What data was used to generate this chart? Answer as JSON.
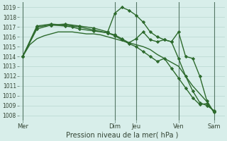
{
  "background_color": "#d8eeea",
  "grid_color": "#b8d8d0",
  "line_color": "#2d6a2d",
  "title": "Pression niveau de la mer( hPa )",
  "ylim": [
    1007.5,
    1019.5
  ],
  "yticks": [
    1008,
    1009,
    1010,
    1011,
    1012,
    1013,
    1014,
    1015,
    1016,
    1017,
    1018,
    1019
  ],
  "xtick_labels": [
    "Mer",
    "Dim",
    "Jeu",
    "Ven",
    "Sam"
  ],
  "xtick_positions": [
    0,
    13,
    16,
    22,
    27
  ],
  "vline_positions": [
    0,
    13,
    16,
    22,
    27
  ],
  "xlim": [
    -0.5,
    28.5
  ],
  "series": [
    {
      "x": [
        0,
        1,
        2,
        3,
        4,
        5,
        6,
        7,
        8,
        9,
        10,
        11,
        12,
        13,
        14,
        15,
        16,
        17,
        18,
        19,
        20,
        21,
        22,
        23,
        24,
        25,
        26,
        27
      ],
      "y": [
        1014.0,
        1015.2,
        1015.8,
        1016.1,
        1016.3,
        1016.5,
        1016.5,
        1016.5,
        1016.4,
        1016.3,
        1016.3,
        1016.2,
        1016.0,
        1015.8,
        1015.6,
        1015.4,
        1015.2,
        1015.0,
        1014.7,
        1014.2,
        1013.8,
        1013.4,
        1013.0,
        1012.0,
        1011.0,
        1010.2,
        1009.4,
        1008.3
      ],
      "marker": null,
      "linewidth": 1.0
    },
    {
      "x": [
        0,
        2,
        4,
        6,
        8,
        10,
        12,
        13,
        14,
        15,
        16,
        17,
        18,
        19,
        20,
        21,
        22,
        23,
        24,
        25,
        26,
        27
      ],
      "y": [
        1014.0,
        1016.8,
        1017.2,
        1017.3,
        1017.1,
        1016.9,
        1016.5,
        1018.4,
        1019.0,
        1018.7,
        1018.2,
        1017.5,
        1016.5,
        1016.0,
        1015.7,
        1015.5,
        1016.5,
        1014.0,
        1013.8,
        1012.0,
        1009.5,
        1008.3
      ],
      "marker": "D",
      "linewidth": 1.0,
      "markersize": 2.2
    },
    {
      "x": [
        0,
        2,
        4,
        6,
        7,
        8,
        10,
        12,
        13,
        14,
        15,
        16,
        17,
        18,
        19,
        20,
        21,
        22,
        23,
        24,
        25,
        26,
        27
      ],
      "y": [
        1014.0,
        1017.0,
        1017.2,
        1017.1,
        1017.0,
        1016.8,
        1016.6,
        1016.4,
        1016.2,
        1015.8,
        1015.4,
        1015.8,
        1016.5,
        1015.7,
        1015.5,
        1015.7,
        1015.5,
        1013.8,
        1012.0,
        1010.5,
        1009.3,
        1009.0,
        1008.5
      ],
      "marker": "D",
      "linewidth": 1.0,
      "markersize": 2.2
    },
    {
      "x": [
        0,
        2,
        4,
        6,
        8,
        10,
        12,
        13,
        14,
        15,
        16,
        17,
        18,
        19,
        20,
        21,
        22,
        23,
        24,
        25,
        26,
        27
      ],
      "y": [
        1014.0,
        1017.1,
        1017.3,
        1017.2,
        1017.0,
        1016.7,
        1016.4,
        1016.1,
        1015.7,
        1015.3,
        1015.0,
        1014.5,
        1014.0,
        1013.5,
        1013.8,
        1012.8,
        1011.8,
        1010.8,
        1009.8,
        1009.1,
        1009.2,
        1008.4
      ],
      "marker": "D",
      "linewidth": 1.0,
      "markersize": 2.2
    }
  ]
}
